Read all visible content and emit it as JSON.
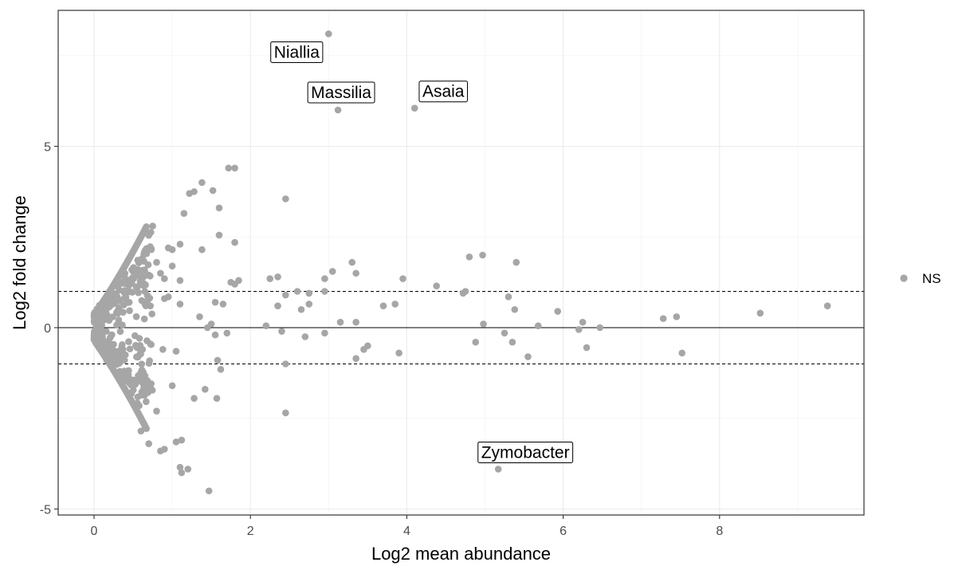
{
  "chart_data": {
    "type": "scatter",
    "title": "",
    "xlabel": "Log2 mean abundance",
    "ylabel": "Log2 fold change",
    "xlim": [
      -0.45,
      9.75
    ],
    "ylim": [
      -5.2,
      8.7
    ],
    "x_ticks": [
      0,
      2,
      4,
      6,
      8
    ],
    "x_tick_labels": [
      "0",
      "2",
      "4",
      "6",
      "8"
    ],
    "y_ticks": [
      -5,
      0,
      5
    ],
    "y_tick_labels": [
      "-5",
      "0",
      "5"
    ],
    "grid": true,
    "hlines": [
      {
        "y": 0,
        "style": "solid"
      },
      {
        "y": 1,
        "style": "dashed"
      },
      {
        "y": -1,
        "style": "dashed"
      }
    ],
    "legend": {
      "position": "right",
      "entries": [
        {
          "label": "NS",
          "color": "#a6a6a6"
        }
      ]
    },
    "point_color": "#a6a6a6",
    "annotations": [
      {
        "label": "Niallia",
        "x": 3.0,
        "y": 8.1
      },
      {
        "label": "Massilia",
        "x": 3.12,
        "y": 6.0
      },
      {
        "label": "Asaia",
        "x": 4.1,
        "y": 6.05
      },
      {
        "label": "Zymobacter",
        "x": 5.17,
        "y": -3.9
      }
    ],
    "series": [
      {
        "name": "NS",
        "points": [
          [
            3.0,
            8.1
          ],
          [
            3.12,
            6.0
          ],
          [
            4.1,
            6.05
          ],
          [
            5.17,
            -3.9
          ],
          [
            1.72,
            4.4
          ],
          [
            1.8,
            4.4
          ],
          [
            1.38,
            4.0
          ],
          [
            1.52,
            3.78
          ],
          [
            1.22,
            3.7
          ],
          [
            1.28,
            3.75
          ],
          [
            2.45,
            3.55
          ],
          [
            1.15,
            3.15
          ],
          [
            1.6,
            3.3
          ],
          [
            0.75,
            2.8
          ],
          [
            1.6,
            2.55
          ],
          [
            1.8,
            2.35
          ],
          [
            1.1,
            2.3
          ],
          [
            1.0,
            2.15
          ],
          [
            0.95,
            2.2
          ],
          [
            1.38,
            2.15
          ],
          [
            0.8,
            1.8
          ],
          [
            1.0,
            1.7
          ],
          [
            0.85,
            1.5
          ],
          [
            0.7,
            1.45
          ],
          [
            0.6,
            1.5
          ],
          [
            0.9,
            1.35
          ],
          [
            0.6,
            1.3
          ],
          [
            1.8,
            1.2
          ],
          [
            1.85,
            1.3
          ],
          [
            1.75,
            1.25
          ],
          [
            0.5,
            1.55
          ],
          [
            0.55,
            1.45
          ],
          [
            1.1,
            1.3
          ],
          [
            0.55,
            1.1
          ],
          [
            0.65,
            1.0
          ],
          [
            0.95,
            0.85
          ],
          [
            0.9,
            0.8
          ],
          [
            1.1,
            0.65
          ],
          [
            0.65,
            0.65
          ],
          [
            0.72,
            0.6
          ],
          [
            0.45,
            0.7
          ],
          [
            1.55,
            0.7
          ],
          [
            1.65,
            0.65
          ],
          [
            1.35,
            0.3
          ],
          [
            1.5,
            0.1
          ],
          [
            1.45,
            0.0
          ],
          [
            1.55,
            -0.2
          ],
          [
            1.7,
            -0.15
          ],
          [
            0.55,
            -0.55
          ],
          [
            0.62,
            -0.6
          ],
          [
            0.72,
            -0.45
          ],
          [
            0.88,
            -0.6
          ],
          [
            1.05,
            -0.65
          ],
          [
            0.4,
            -0.75
          ],
          [
            1.58,
            -0.9
          ],
          [
            1.62,
            -1.15
          ],
          [
            1.0,
            -1.6
          ],
          [
            1.42,
            -1.7
          ],
          [
            1.28,
            -1.95
          ],
          [
            1.57,
            -1.95
          ],
          [
            0.8,
            -2.3
          ],
          [
            0.6,
            -2.85
          ],
          [
            0.7,
            -3.2
          ],
          [
            1.05,
            -3.15
          ],
          [
            1.12,
            -3.1
          ],
          [
            0.85,
            -3.4
          ],
          [
            0.9,
            -3.35
          ],
          [
            1.1,
            -3.85
          ],
          [
            1.12,
            -4.0
          ],
          [
            1.2,
            -3.9
          ],
          [
            1.47,
            -4.5
          ],
          [
            2.25,
            1.35
          ],
          [
            2.35,
            1.4
          ],
          [
            2.45,
            0.9
          ],
          [
            2.35,
            0.6
          ],
          [
            2.6,
            1.0
          ],
          [
            2.75,
            0.95
          ],
          [
            2.95,
            1.35
          ],
          [
            3.05,
            1.55
          ],
          [
            3.3,
            1.8
          ],
          [
            3.35,
            1.5
          ],
          [
            2.95,
            1.0
          ],
          [
            2.65,
            0.5
          ],
          [
            2.75,
            0.65
          ],
          [
            2.2,
            0.05
          ],
          [
            2.4,
            -0.1
          ],
          [
            3.15,
            0.15
          ],
          [
            3.35,
            0.15
          ],
          [
            2.95,
            -0.15
          ],
          [
            2.7,
            -0.25
          ],
          [
            2.45,
            -1.0
          ],
          [
            2.45,
            -2.35
          ],
          [
            3.35,
            -0.85
          ],
          [
            3.5,
            -0.5
          ],
          [
            3.45,
            -0.6
          ],
          [
            3.7,
            0.6
          ],
          [
            3.85,
            0.65
          ],
          [
            3.95,
            1.35
          ],
          [
            3.9,
            -0.7
          ],
          [
            4.38,
            1.15
          ],
          [
            4.72,
            0.95
          ],
          [
            4.75,
            1.0
          ],
          [
            4.8,
            1.95
          ],
          [
            4.97,
            2.0
          ],
          [
            5.4,
            1.8
          ],
          [
            4.88,
            -0.4
          ],
          [
            4.98,
            0.1
          ],
          [
            5.3,
            0.85
          ],
          [
            5.38,
            0.5
          ],
          [
            5.25,
            -0.15
          ],
          [
            5.35,
            -0.4
          ],
          [
            5.55,
            -0.8
          ],
          [
            5.68,
            0.05
          ],
          [
            5.93,
            0.45
          ],
          [
            6.2,
            -0.05
          ],
          [
            6.25,
            0.15
          ],
          [
            6.3,
            -0.55
          ],
          [
            6.47,
            0.0
          ],
          [
            7.28,
            0.25
          ],
          [
            7.45,
            0.3
          ],
          [
            7.52,
            -0.7
          ],
          [
            8.52,
            0.4
          ],
          [
            9.38,
            0.6
          ]
        ],
        "dense_cloud": {
          "description": "many low-abundance features forming a funnel near x=0",
          "x_range": [
            0,
            0.75
          ],
          "y_envelope": "approximately +/- (0.4 + 3.2*x)",
          "count": 380
        }
      }
    ]
  }
}
